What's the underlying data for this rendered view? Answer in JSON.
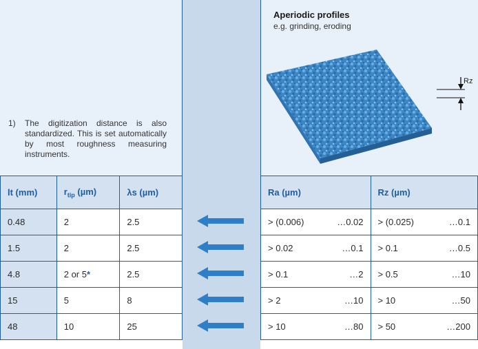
{
  "footnote": {
    "number": "1)",
    "text": "The digitization distance is also standardized. This is set automatically by most roughness measuring instruments."
  },
  "profile": {
    "title": "Aperiodic profiles",
    "subtitle": "e.g. grinding, eroding",
    "dimension_label": "Rz"
  },
  "left_table": {
    "headers": {
      "lt": "lt (mm)",
      "r_main": "r",
      "r_sub": "tip",
      "r_unit": " (µm)",
      "ls": "λs (µm)"
    },
    "rows": [
      {
        "lt": "0.48",
        "r": "2",
        "star": "",
        "ls": "2.5"
      },
      {
        "lt": "1.5",
        "r": "2",
        "star": "",
        "ls": "2.5"
      },
      {
        "lt": "4.8",
        "r": "2 or 5",
        "star": "*",
        "ls": "2.5"
      },
      {
        "lt": "15",
        "r": "5",
        "star": "",
        "ls": "8"
      },
      {
        "lt": "48",
        "r": "10",
        "star": "",
        "ls": "25"
      }
    ]
  },
  "right_table": {
    "headers": {
      "ra": "Ra (µm)",
      "rz": "Rz (µm)"
    },
    "rows": [
      {
        "ra_from": "> (0.006)",
        "ra_to": "…0.02",
        "rz_from": "> (0.025)",
        "rz_to": "…0.1"
      },
      {
        "ra_from": "> 0.02",
        "ra_to": "…0.1",
        "rz_from": "> 0.1",
        "rz_to": "…0.5"
      },
      {
        "ra_from": "> 0.1",
        "ra_to": "…2",
        "rz_from": "> 0.5",
        "rz_to": "…10"
      },
      {
        "ra_from": "> 2",
        "ra_to": "…10",
        "rz_from": "> 10",
        "rz_to": "…50"
      },
      {
        "ra_from": "> 10",
        "ra_to": "…80",
        "rz_from": "> 50",
        "rz_to": "…200"
      }
    ]
  },
  "colors": {
    "accent": "#1f5ea0",
    "arrow": "#2e7fc8",
    "header_bg": "#d3e1f1",
    "panel_bg": "#e8f0f9",
    "band_bg": "#c9d9ec"
  }
}
